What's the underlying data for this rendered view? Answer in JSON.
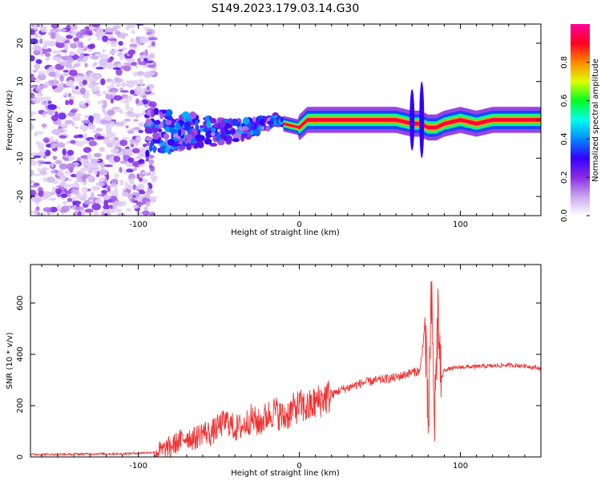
{
  "figure": {
    "title": "S149.2023.179.03.14.G30"
  },
  "chart_data": [
    {
      "type": "heatmap",
      "xlabel": "Height of straight line (km)",
      "ylabel": "Frequency (Hz)",
      "xlim": [
        -167,
        150
      ],
      "ylim": [
        -25,
        25
      ],
      "xticks": [
        -100,
        0,
        100
      ],
      "yticks": [
        -20,
        -10,
        0,
        10,
        20
      ],
      "colorbar": {
        "label": "Normalized spectral amplitude",
        "range": [
          0,
          1
        ],
        "ticks": [
          0.0,
          0.2,
          0.4,
          0.6,
          0.8
        ],
        "colormap": [
          "#ffffff",
          "#c9a6ee",
          "#8a2be2",
          "#3300ff",
          "#0088ff",
          "#00ffee",
          "#00ff22",
          "#ddff00",
          "#ff8800",
          "#ff0022",
          "#ff0099"
        ]
      },
      "signal_ridge": {
        "x": [
          -90,
          -80,
          -70,
          -60,
          -50,
          -40,
          -30,
          -20,
          -15,
          -10,
          -5,
          0,
          5,
          20,
          40,
          60,
          70,
          75,
          80,
          85,
          90,
          100,
          110,
          120,
          150
        ],
        "y": [
          -3,
          -3,
          -3,
          -3,
          -3,
          -3,
          -2,
          -1,
          0,
          -1,
          -1.5,
          -2,
          0,
          0,
          0,
          0,
          -1,
          -1,
          -2,
          -2,
          -1,
          0,
          -1,
          0,
          0
        ]
      }
    },
    {
      "type": "line",
      "xlabel": "Height of straight line (km)",
      "ylabel": "SNR (10 * v/v)",
      "xlim": [
        -167,
        150
      ],
      "ylim": [
        0,
        750
      ],
      "xticks": [
        -100,
        0,
        100
      ],
      "yticks": [
        0,
        200,
        400,
        600
      ],
      "color": "#ee3333",
      "series": [
        {
          "x": [
            -167,
            -150,
            -130,
            -110,
            -100,
            -90,
            -85,
            -80,
            -75,
            -70,
            -65,
            -60,
            -55,
            -50,
            -45,
            -40,
            -35,
            -30,
            -25,
            -20,
            -15,
            -10,
            -5,
            0,
            5,
            10,
            15,
            20,
            25,
            30,
            35,
            40,
            45,
            50,
            55,
            60,
            65,
            70,
            75,
            78,
            80,
            82,
            84,
            86,
            88,
            90,
            95,
            100,
            110,
            120,
            130,
            140,
            150
          ],
          "y": [
            10,
            10,
            12,
            12,
            15,
            18,
            25,
            40,
            60,
            80,
            70,
            100,
            90,
            120,
            140,
            110,
            120,
            150,
            130,
            160,
            180,
            150,
            180,
            200,
            190,
            210,
            230,
            240,
            260,
            270,
            280,
            290,
            295,
            300,
            305,
            310,
            320,
            330,
            335,
            520,
            100,
            600,
            150,
            560,
            300,
            340,
            345,
            350,
            352,
            355,
            358,
            355,
            345
          ]
        }
      ]
    }
  ]
}
